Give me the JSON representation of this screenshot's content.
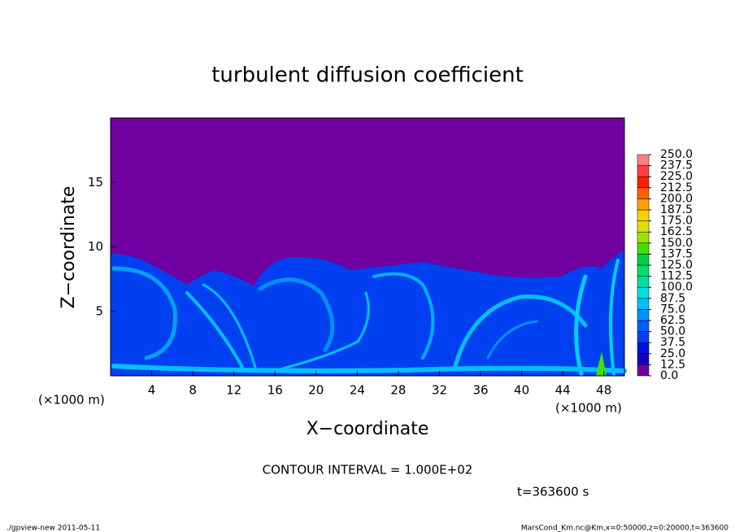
{
  "chart_data": {
    "type": "heatmap",
    "title": "turbulent diffusion coefficient",
    "xlabel": "X−coordinate",
    "ylabel": "Z−coordinate",
    "x_unit_left": "(×1000 m)",
    "x_unit_right": "(×1000 m)",
    "xlim": [
      0,
      50
    ],
    "ylim": [
      0,
      20
    ],
    "xticks": [
      4,
      8,
      12,
      16,
      20,
      24,
      28,
      32,
      36,
      40,
      44,
      48
    ],
    "yticks": [
      5,
      10,
      15
    ],
    "colorbar": {
      "levels": [
        {
          "value": 0,
          "label": "0.0"
        },
        12.5,
        {
          "value": 25,
          "label": "25.0"
        },
        37.5,
        {
          "value": 50,
          "label": "50.0"
        },
        62.5,
        {
          "value": 75,
          "label": "75.0"
        },
        87.5,
        {
          "value": 100,
          "label": "100.0"
        },
        112.5,
        {
          "value": 125,
          "label": "125.0"
        },
        137.5,
        {
          "value": 150,
          "label": "150.0"
        },
        162.5,
        {
          "value": 175,
          "label": "175.0"
        },
        187.5,
        {
          "value": 200,
          "label": "200.0"
        },
        212.5,
        {
          "value": 225,
          "label": "225.0"
        },
        237.5,
        {
          "value": 250,
          "label": "250.0"
        }
      ],
      "colors": [
        "#7000a0",
        "#1800c0",
        "#0010e0",
        "#0040f0",
        "#0060ff",
        "#0090ff",
        "#00c0ff",
        "#00e0e0",
        "#00e0a0",
        "#00e070",
        "#00d040",
        "#40e000",
        "#a0e000",
        "#e0e000",
        "#ffd000",
        "#ffa000",
        "#ff6000",
        "#ff2000",
        "#ff4040",
        "#ff8080"
      ]
    },
    "annotations": [
      "CONTOUR INTERVAL = 1.000E+02",
      "t=363600 s"
    ],
    "footer_left": "./gpview-new   2011-05-11",
    "footer_right": "MarsCond_Km.nc@Km,x=0:50000,z=0:20000,t=363600"
  }
}
